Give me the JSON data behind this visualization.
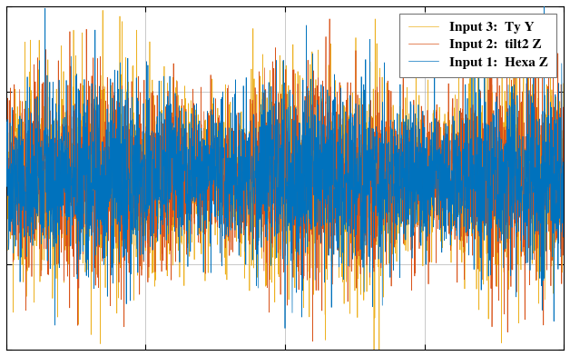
{
  "n_points": 3000,
  "seed": 42,
  "line1_color": "#0072BD",
  "line2_color": "#D95319",
  "line3_color": "#EDB120",
  "line1_label": "Input 1:  Hexa Z",
  "line2_label": "Input 2:  tilt2 Z",
  "line3_label": "Input 3:  Ty Y",
  "line_width": 0.5,
  "background_color": "#FFFFFF",
  "grid_color": "#B0B0B0",
  "legend_fontsize": 11,
  "tick_fontsize": 9,
  "sig1_scale": 0.28,
  "sig2_scale": 0.3,
  "sig3_scale": 0.32,
  "ylim": [
    -1.2,
    1.2
  ],
  "xlim": [
    0,
    3000
  ],
  "n_xticks": 4,
  "n_yticks": 3
}
